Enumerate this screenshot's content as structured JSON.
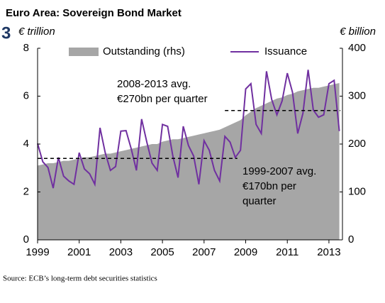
{
  "figure_number": "3",
  "chart_data": {
    "type": "combo",
    "title": "Euro Area: Sovereign Bond Market",
    "y_label": "€ trillion",
    "y2_label": "€ billion",
    "source": "Source: ECB’s long-term debt securities statistics",
    "x": [
      1999,
      1999.25,
      1999.5,
      1999.75,
      2000,
      2000.25,
      2000.5,
      2000.75,
      2001,
      2001.25,
      2001.5,
      2001.75,
      2002,
      2002.25,
      2002.5,
      2002.75,
      2003,
      2003.25,
      2003.5,
      2003.75,
      2004,
      2004.25,
      2004.5,
      2004.75,
      2005,
      2005.25,
      2005.5,
      2005.75,
      2006,
      2006.25,
      2006.5,
      2006.75,
      2007,
      2007.25,
      2007.5,
      2007.75,
      2008,
      2008.25,
      2008.5,
      2008.75,
      2009,
      2009.25,
      2009.5,
      2009.75,
      2010,
      2010.25,
      2010.5,
      2010.75,
      2011,
      2011.25,
      2011.5,
      2011.75,
      2012,
      2012.25,
      2012.5,
      2012.75,
      2013,
      2013.25,
      2013.5
    ],
    "series": [
      {
        "name": "Outstanding (rhs)",
        "type": "area",
        "color": "#a6a6a6",
        "values": [
          3.1,
          3.15,
          3.2,
          3.2,
          3.25,
          3.3,
          3.3,
          3.35,
          3.4,
          3.45,
          3.45,
          3.5,
          3.55,
          3.6,
          3.6,
          3.65,
          3.7,
          3.75,
          3.8,
          3.85,
          3.9,
          3.95,
          4.0,
          4.0,
          4.1,
          4.15,
          4.2,
          4.2,
          4.25,
          4.3,
          4.35,
          4.4,
          4.45,
          4.5,
          4.55,
          4.6,
          4.7,
          4.8,
          4.9,
          5.0,
          5.2,
          5.35,
          5.5,
          5.6,
          5.7,
          5.8,
          5.9,
          5.95,
          6.05,
          6.1,
          6.2,
          6.25,
          6.3,
          6.35,
          6.35,
          6.4,
          6.45,
          6.5,
          6.55
        ]
      },
      {
        "name": "Issuance",
        "type": "line",
        "color": "#7030a0",
        "axis": "y2",
        "values": [
          201,
          163,
          151,
          108,
          172,
          133,
          123,
          116,
          182,
          148,
          138,
          116,
          234,
          182,
          145,
          153,
          227,
          228,
          190,
          145,
          252,
          204,
          160,
          145,
          241,
          237,
          175,
          130,
          237,
          197,
          175,
          116,
          207,
          187,
          145,
          123,
          216,
          204,
          172,
          187,
          315,
          326,
          241,
          222,
          352,
          293,
          261,
          290,
          348,
          308,
          222,
          264,
          355,
          271,
          256,
          261,
          326,
          333,
          227
        ]
      }
    ],
    "annotations": [
      {
        "text": [
          "2008-2013 avg.",
          "€270bn per quarter"
        ],
        "value": 270,
        "x": [
          2008,
          2013.55
        ]
      },
      {
        "text": [
          "1999-2007 avg.",
          "€170bn per",
          "quarter"
        ],
        "value": 170,
        "x": [
          1999,
          2008.6
        ]
      }
    ],
    "xlim": [
      1999,
      2013.65
    ],
    "xticks": [
      1999,
      2001,
      2003,
      2005,
      2007,
      2009,
      2011,
      2013
    ],
    "ylim": [
      0,
      8
    ],
    "yticks": [
      0,
      2,
      4,
      6,
      8
    ],
    "y2lim": [
      0,
      400
    ],
    "y2ticks": [
      0,
      100,
      200,
      300,
      400
    ],
    "grid": false
  }
}
